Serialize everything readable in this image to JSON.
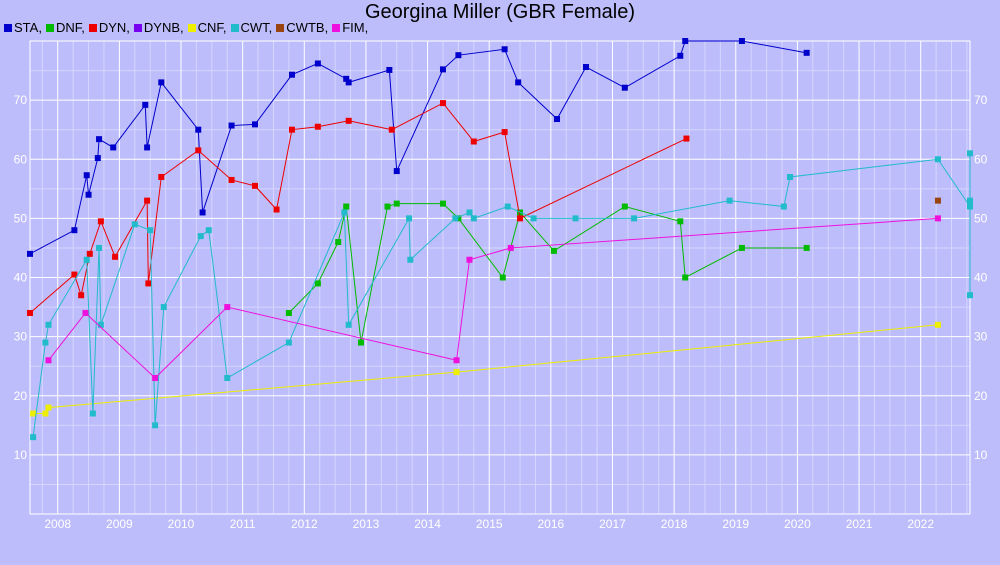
{
  "chart_data": {
    "type": "line",
    "title": "Georgina Miller (GBR Female)",
    "xlabel": "",
    "ylabel": "",
    "xlim": [
      2007.55,
      2022.8
    ],
    "ylim": [
      0,
      80
    ],
    "x_ticks": [
      2008,
      2009,
      2010,
      2011,
      2012,
      2013,
      2014,
      2015,
      2016,
      2017,
      2018,
      2019,
      2020,
      2021,
      2022
    ],
    "y_ticks": [
      10,
      20,
      30,
      40,
      50,
      60,
      70
    ],
    "grid": true,
    "legend_position": "top-left",
    "series": [
      {
        "name": "STA",
        "label": "STA,",
        "color": "#0000cc",
        "points": [
          [
            2007.55,
            44
          ],
          [
            2008.27,
            48
          ],
          [
            2008.47,
            57.3
          ],
          [
            2008.5,
            54
          ],
          [
            2008.65,
            60.2
          ],
          [
            2008.67,
            63.4
          ],
          [
            2008.9,
            62
          ],
          [
            2009.42,
            69.2
          ],
          [
            2009.45,
            62
          ],
          [
            2009.68,
            73
          ],
          [
            2010.28,
            65
          ],
          [
            2010.35,
            51
          ],
          [
            2010.82,
            65.7
          ],
          [
            2011.2,
            65.9
          ],
          [
            2011.8,
            74.3
          ],
          [
            2012.22,
            76.2
          ],
          [
            2012.68,
            73.6
          ],
          [
            2012.72,
            73
          ],
          [
            2013.38,
            75.1
          ],
          [
            2013.5,
            58
          ],
          [
            2014.25,
            75.2
          ],
          [
            2014.5,
            77.6
          ],
          [
            2015.25,
            78.6
          ],
          [
            2015.47,
            73
          ],
          [
            2016.1,
            66.8
          ],
          [
            2016.57,
            75.6
          ],
          [
            2017.2,
            72.1
          ],
          [
            2018.1,
            77.5
          ],
          [
            2018.18,
            80
          ],
          [
            2019.1,
            80
          ],
          [
            2020.15,
            78
          ]
        ]
      },
      {
        "name": "DNF",
        "label": "DNF,",
        "color": "#00bb00",
        "points": [
          [
            2011.75,
            34
          ],
          [
            2012.22,
            39
          ],
          [
            2012.55,
            46
          ],
          [
            2012.68,
            52
          ],
          [
            2012.92,
            29
          ],
          [
            2013.35,
            52
          ],
          [
            2013.5,
            52.5
          ],
          [
            2014.25,
            52.5
          ],
          [
            2014.5,
            50
          ],
          [
            2015.22,
            40
          ],
          [
            2015.5,
            51
          ],
          [
            2016.05,
            44.5
          ],
          [
            2017.2,
            52
          ],
          [
            2018.1,
            49.5
          ],
          [
            2018.18,
            40
          ],
          [
            2019.1,
            45
          ],
          [
            2020.15,
            45
          ]
        ]
      },
      {
        "name": "DYN",
        "label": "DYN,",
        "color": "#ee0000",
        "points": [
          [
            2007.55,
            34
          ],
          [
            2008.27,
            40.5
          ],
          [
            2008.38,
            37
          ],
          [
            2008.52,
            44
          ],
          [
            2008.7,
            49.5
          ],
          [
            2008.93,
            43.5
          ],
          [
            2009.45,
            53
          ],
          [
            2009.47,
            39
          ],
          [
            2009.68,
            57
          ],
          [
            2010.28,
            61.5
          ],
          [
            2010.82,
            56.5
          ],
          [
            2011.2,
            55.5
          ],
          [
            2011.55,
            51.5
          ],
          [
            2011.8,
            65
          ],
          [
            2012.22,
            65.5
          ],
          [
            2012.72,
            66.5
          ],
          [
            2013.42,
            65
          ],
          [
            2014.25,
            69.5
          ],
          [
            2014.75,
            63
          ],
          [
            2015.25,
            64.6
          ],
          [
            2015.5,
            50
          ],
          [
            2018.2,
            63.5
          ]
        ]
      },
      {
        "name": "DYNB",
        "label": "DYNB,",
        "color": "#7700ee",
        "points": []
      },
      {
        "name": "CNF",
        "label": "CNF,",
        "color": "#eeee00",
        "points": [
          [
            2007.6,
            17
          ],
          [
            2007.8,
            17
          ],
          [
            2007.85,
            18
          ],
          [
            2014.47,
            24
          ],
          [
            2022.28,
            32
          ]
        ]
      },
      {
        "name": "CWT",
        "label": "CWT,",
        "color": "#22bbcc",
        "points": [
          [
            2007.6,
            13
          ],
          [
            2007.8,
            29
          ],
          [
            2007.85,
            32
          ],
          [
            2008.47,
            43
          ],
          [
            2008.57,
            17
          ],
          [
            2008.67,
            45
          ],
          [
            2008.7,
            32
          ],
          [
            2009.25,
            49
          ],
          [
            2009.5,
            48
          ],
          [
            2009.58,
            15
          ],
          [
            2009.72,
            35
          ],
          [
            2010.32,
            47
          ],
          [
            2010.45,
            48
          ],
          [
            2010.75,
            23
          ],
          [
            2011.75,
            29
          ],
          [
            2012.65,
            51
          ],
          [
            2012.72,
            32
          ],
          [
            2013.7,
            50
          ],
          [
            2013.72,
            43
          ],
          [
            2014.45,
            50
          ],
          [
            2014.68,
            51
          ],
          [
            2014.75,
            50
          ],
          [
            2015.3,
            52
          ],
          [
            2015.72,
            50
          ],
          [
            2016.4,
            50
          ],
          [
            2017.35,
            50
          ],
          [
            2018.9,
            53
          ],
          [
            2019.78,
            52
          ],
          [
            2019.88,
            57
          ],
          [
            2022.28,
            60
          ],
          [
            2022.8,
            52
          ],
          [
            2022.8,
            53
          ],
          [
            2022.8,
            37
          ],
          [
            2022.8,
            61
          ]
        ]
      },
      {
        "name": "CWTB",
        "label": "CWTB,",
        "color": "#994411",
        "points": [
          [
            2022.28,
            53
          ]
        ]
      },
      {
        "name": "FIM",
        "label": "FIM,",
        "color": "#ee11dd",
        "points": [
          [
            2007.85,
            26
          ],
          [
            2008.45,
            34
          ],
          [
            2009.58,
            23
          ],
          [
            2010.75,
            35
          ],
          [
            2014.47,
            26
          ],
          [
            2014.68,
            43
          ],
          [
            2015.35,
            45
          ],
          [
            2022.28,
            50
          ]
        ]
      }
    ]
  }
}
